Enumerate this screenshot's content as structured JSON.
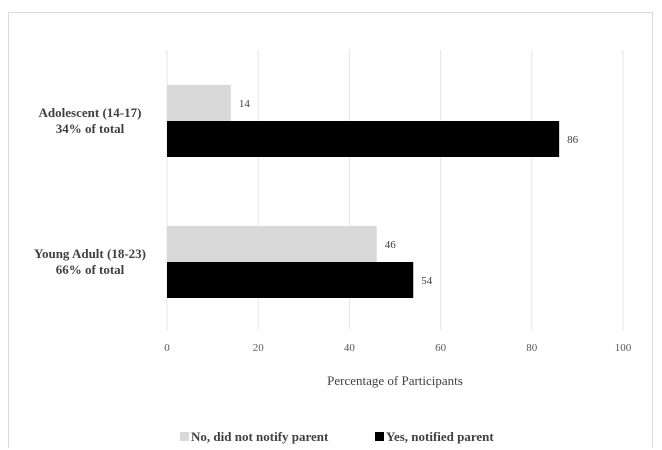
{
  "chart_data": {
    "type": "bar",
    "orientation": "horizontal",
    "categories": [
      [
        "Adolescent (14-17)",
        "34% of total"
      ],
      [
        "Young Adult (18-23)",
        "66% of total"
      ]
    ],
    "series": [
      {
        "name": "No, did not notify parent",
        "values": [
          14,
          46
        ],
        "color": "#d9d9d9"
      },
      {
        "name": "Yes, notified parent",
        "values": [
          86,
          54
        ],
        "color": "#000000"
      }
    ],
    "xlabel": "Percentage of Participants",
    "xlim": [
      0,
      100
    ],
    "xticks": [
      0,
      20,
      40,
      60,
      80,
      100
    ],
    "grid": true,
    "legend": "bottom"
  }
}
